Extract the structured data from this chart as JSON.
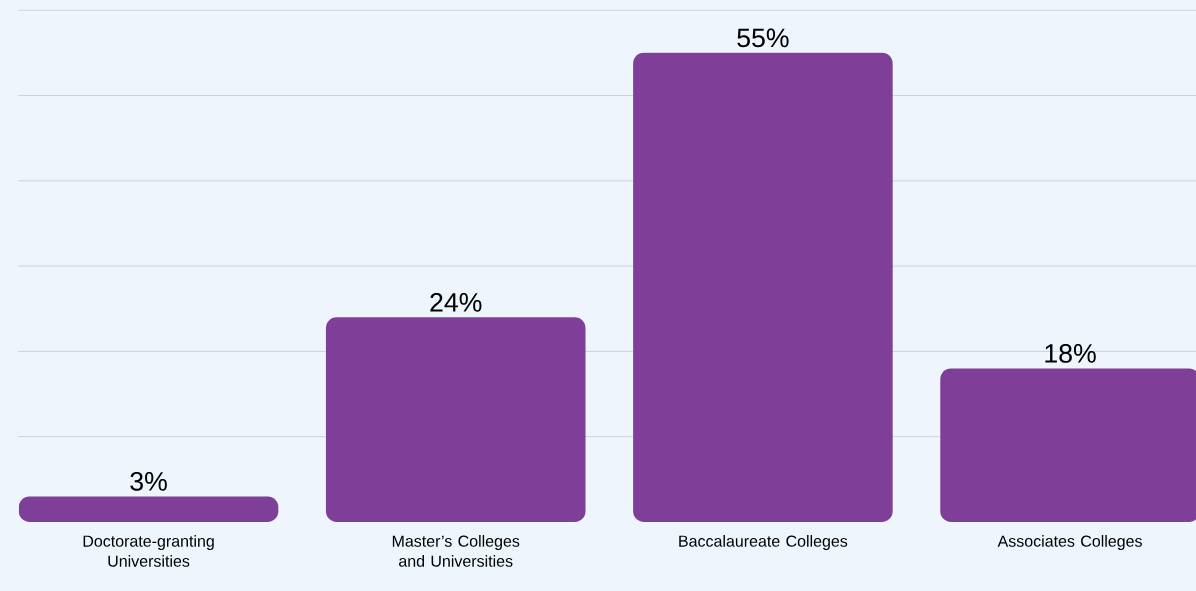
{
  "chart_data": {
    "type": "bar",
    "categories": [
      "Doctorate-granting Universities",
      "Master’s Colleges and Universities",
      "Baccalaureate Colleges",
      "Associates Colleges"
    ],
    "values": [
      3,
      24,
      55,
      18
    ],
    "value_labels": [
      "3%",
      "24%",
      "55%",
      "18%"
    ],
    "color": "#7f3f98",
    "ylim": [
      0,
      61.2
    ],
    "yticks": [
      {
        "value": 10,
        "label": null
      },
      {
        "value": 20,
        "label": null
      },
      {
        "value": 30,
        "label": null
      },
      {
        "value": 40,
        "label": null
      },
      {
        "value": 50,
        "label": null
      },
      {
        "value": 60,
        "label": null
      }
    ],
    "grid": "y",
    "tick_labels": "x"
  }
}
